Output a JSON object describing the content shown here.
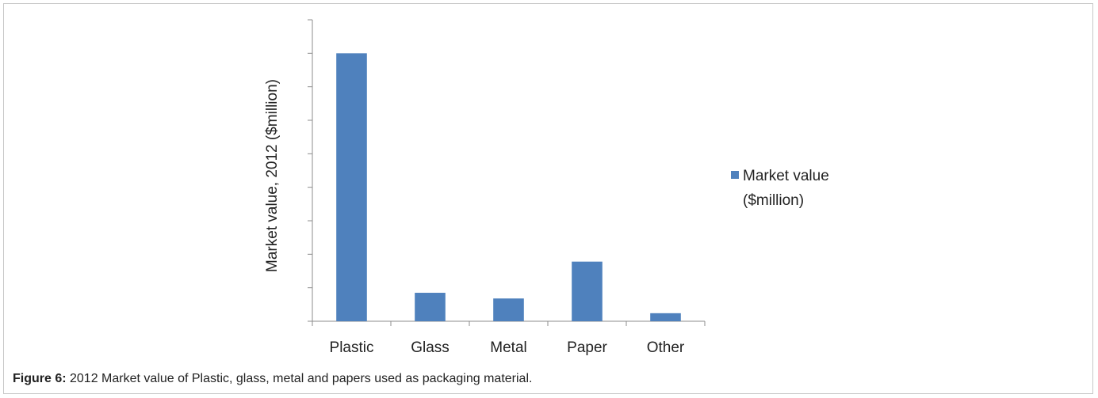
{
  "chart_data": {
    "type": "bar",
    "categories": [
      "Plastic",
      "Glass",
      "Metal",
      "Paper",
      "Other"
    ],
    "series": [
      {
        "name": "Market value ($million)",
        "values": [
          8000,
          850,
          680,
          1780,
          240
        ]
      }
    ],
    "ylabel": "Market value, 2012 ($million)",
    "xlabel": "",
    "ylim": [
      0,
      9000
    ],
    "y_tick_labels_shown": false,
    "grid": false,
    "legend_position": "right",
    "legend_lines": [
      "Market value",
      "($million)"
    ],
    "bar_color": "#4f81bd"
  },
  "caption": {
    "label": "Figure 6:",
    "text": " 2012 Market value of Plastic, glass, metal and papers used as packaging material."
  }
}
